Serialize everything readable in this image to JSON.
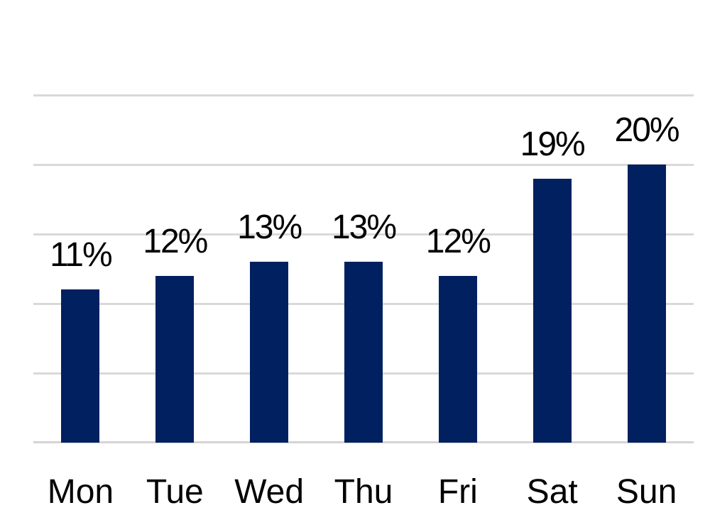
{
  "chart_data": {
    "type": "bar",
    "title": "",
    "categories": [
      "Mon",
      "Tue",
      "Wed",
      "Thu",
      "Fri",
      "Sat",
      "Sun"
    ],
    "values": [
      11,
      12,
      13,
      13,
      12,
      19,
      20
    ],
    "data_labels": [
      "11%",
      "12%",
      "13%",
      "13%",
      "12%",
      "19%",
      "20%"
    ],
    "xlabel": "",
    "ylabel": "",
    "ylim": [
      0,
      25
    ],
    "gridline_step": 5,
    "grid": true,
    "legend_position": "none",
    "y_axis_tick_labels_visible": false,
    "bar_color": "#002060",
    "gridline_color": "#d9d9d9",
    "axis_line_color": "#d4d4d4",
    "label_color": "#000000",
    "background_color": "#ffffff"
  }
}
